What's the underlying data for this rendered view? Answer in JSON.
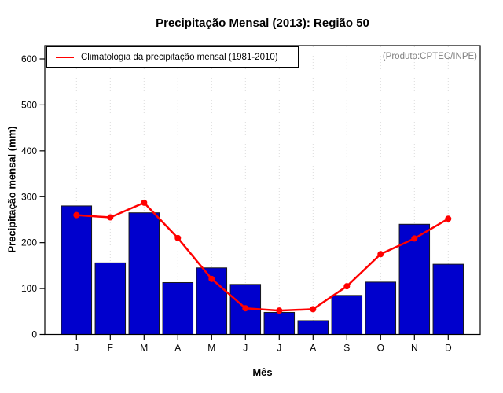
{
  "title": "Precipitação Mensal (2013): Região 50",
  "note": "(Produto:CPTEC/INPE)",
  "legend": {
    "label": "Climatologia da precipitação mensal (1981-2010)"
  },
  "chart_data": {
    "type": "bar",
    "title": "Precipitação Mensal (2013): Região 50",
    "xlabel": "Mês",
    "ylabel": "Precipitação mensal (mm)",
    "annotation": "(Produto:CPTEC/INPE)",
    "categories": [
      "J",
      "F",
      "M",
      "A",
      "M",
      "J",
      "J",
      "A",
      "S",
      "O",
      "N",
      "D"
    ],
    "series": [
      {
        "name": "Precipitação mensal 2013",
        "type": "bar",
        "color": "#0000CD",
        "values": [
          280,
          156,
          265,
          113,
          145,
          109,
          48,
          30,
          85,
          114,
          240,
          153
        ]
      },
      {
        "name": "Climatologia da precipitação mensal (1981-2010)",
        "type": "line",
        "color": "#FF0000",
        "values": [
          260,
          255,
          287,
          210,
          121,
          57,
          52,
          55,
          105,
          175,
          209,
          252
        ]
      }
    ],
    "ylim": [
      0,
      600
    ],
    "yticks": [
      0,
      100,
      200,
      300,
      400,
      500,
      600
    ],
    "grid": "vertical-dotted",
    "legend_position": "top-left-inside"
  },
  "colors": {
    "bar_fill": "#0000CD",
    "bar_border": "#1A1A1A",
    "line": "#FF0000",
    "grid": "#DBDBDB",
    "frame": "#000000",
    "note_text": "#808080"
  }
}
